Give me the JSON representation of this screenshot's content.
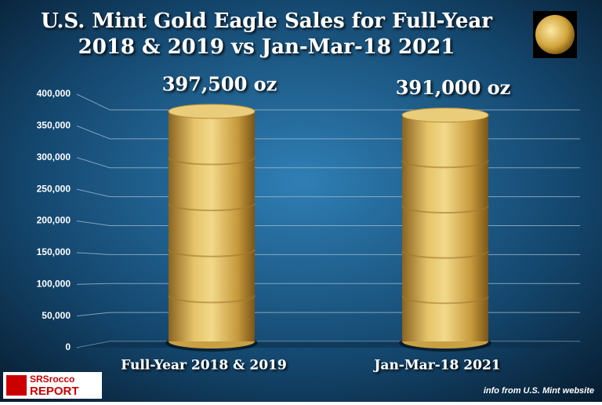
{
  "chart_data": {
    "type": "bar",
    "title": [
      "U.S. Mint Gold Eagle Sales for Full-Year",
      "2018 & 2019 vs Jan-Mar-18 2021"
    ],
    "categories": [
      "Full-Year 2018 & 2019",
      "Jan-Mar-18 2021"
    ],
    "values": [
      397500,
      391000
    ],
    "value_labels": [
      "397,500 oz",
      "391,000 oz"
    ],
    "color": "#c9a043",
    "ylim": [
      0,
      400000
    ],
    "yticks": [
      0,
      {
        "value": 50000,
        "label": "50,000"
      },
      {
        "value": 100000,
        "label": "100,000"
      },
      {
        "value": 150000,
        "label": "150,000"
      },
      {
        "value": 200000,
        "label": "200,000"
      },
      {
        "value": 250000,
        "label": "250,000"
      },
      {
        "value": 300000,
        "label": "300,000"
      },
      {
        "value": 350000,
        "label": "350,000"
      },
      {
        "value": 400000,
        "label": "400,000"
      }
    ],
    "grid": true,
    "source": "info from U.S. Mint website",
    "logo": [
      "SRSrocco",
      "REPORT"
    ]
  }
}
